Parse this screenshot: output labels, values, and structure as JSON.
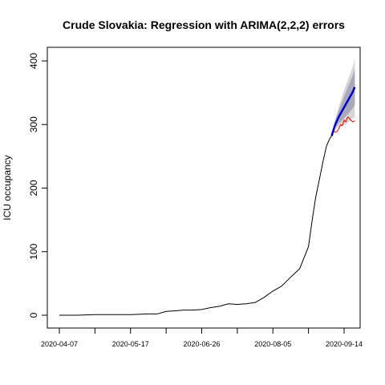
{
  "chart_data": {
    "type": "line",
    "title": "Crude Slovakia: Regression with ARIMA(2,2,2) errors",
    "xlabel": "",
    "ylabel": "ICU occupancy",
    "x_axis": {
      "type": "date",
      "start": "2020-04-07",
      "end": "2020-09-20",
      "ticks": [
        "2020-04-07",
        "2020-04-27",
        "2020-05-17",
        "2020-06-06",
        "2020-06-26",
        "2020-07-16",
        "2020-08-05",
        "2020-08-25",
        "2020-09-14"
      ],
      "tick_labels": [
        "2020-04-07",
        "",
        "2020-05-17",
        "",
        "2020-06-26",
        "",
        "2020-08-05",
        "",
        "2020-09-14"
      ]
    },
    "y_axis": {
      "ylim": [
        0,
        420
      ],
      "ticks": [
        0,
        100,
        200,
        300,
        400
      ],
      "tick_labels": [
        "0",
        "100",
        "200",
        "300",
        "400"
      ]
    },
    "grid": false,
    "legend": null,
    "colors": {
      "observed": "#000000",
      "actual_test": "#ff0000",
      "forecast": "#0000cc",
      "band_inner": "#a9a9b9",
      "band_outer": "#d6d6d6"
    },
    "series": [
      {
        "role": "observed",
        "x": [
          "2020-04-07",
          "2020-04-17",
          "2020-04-27",
          "2020-05-07",
          "2020-05-17",
          "2020-05-27",
          "2020-06-01",
          "2020-06-06",
          "2020-06-11",
          "2020-06-16",
          "2020-06-21",
          "2020-06-26",
          "2020-07-01",
          "2020-07-06",
          "2020-07-11",
          "2020-07-16",
          "2020-07-21",
          "2020-07-26",
          "2020-07-31",
          "2020-08-05",
          "2020-08-10",
          "2020-08-15",
          "2020-08-20",
          "2020-08-25",
          "2020-08-27",
          "2020-08-29",
          "2020-08-31",
          "2020-09-02",
          "2020-09-04",
          "2020-09-05",
          "2020-09-06",
          "2020-09-07"
        ],
        "y": [
          0,
          0,
          1,
          1,
          1,
          2,
          2,
          6,
          7,
          8,
          8,
          9,
          12,
          14,
          18,
          17,
          18,
          20,
          28,
          38,
          46,
          60,
          73,
          108,
          148,
          185,
          212,
          240,
          265,
          272,
          278,
          282
        ]
      },
      {
        "role": "actual_test",
        "x": [
          "2020-09-07",
          "2020-09-08",
          "2020-09-09",
          "2020-09-10",
          "2020-09-11",
          "2020-09-12",
          "2020-09-13",
          "2020-09-14",
          "2020-09-15",
          "2020-09-16",
          "2020-09-17",
          "2020-09-18",
          "2020-09-19",
          "2020-09-20"
        ],
        "y": [
          282,
          290,
          288,
          289,
          293,
          300,
          298,
          307,
          304,
          312,
          310,
          306,
          304,
          306
        ]
      },
      {
        "role": "forecast",
        "x": [
          "2020-09-07",
          "2020-09-09",
          "2020-09-11",
          "2020-09-13",
          "2020-09-15",
          "2020-09-17",
          "2020-09-19",
          "2020-09-20"
        ],
        "y": [
          282,
          300,
          312,
          322,
          332,
          342,
          352,
          359
        ]
      }
    ],
    "intervals": {
      "x": [
        "2020-09-07",
        "2020-09-09",
        "2020-09-11",
        "2020-09-13",
        "2020-09-15",
        "2020-09-17",
        "2020-09-19",
        "2020-09-20"
      ],
      "lower_95": [
        282,
        292,
        296,
        298,
        300,
        305,
        310,
        312
      ],
      "upper_95": [
        282,
        308,
        328,
        346,
        362,
        377,
        392,
        405
      ],
      "lower_80": [
        282,
        295,
        302,
        307,
        313,
        319,
        326,
        331
      ],
      "upper_80": [
        282,
        305,
        322,
        337,
        351,
        365,
        378,
        387
      ]
    }
  }
}
